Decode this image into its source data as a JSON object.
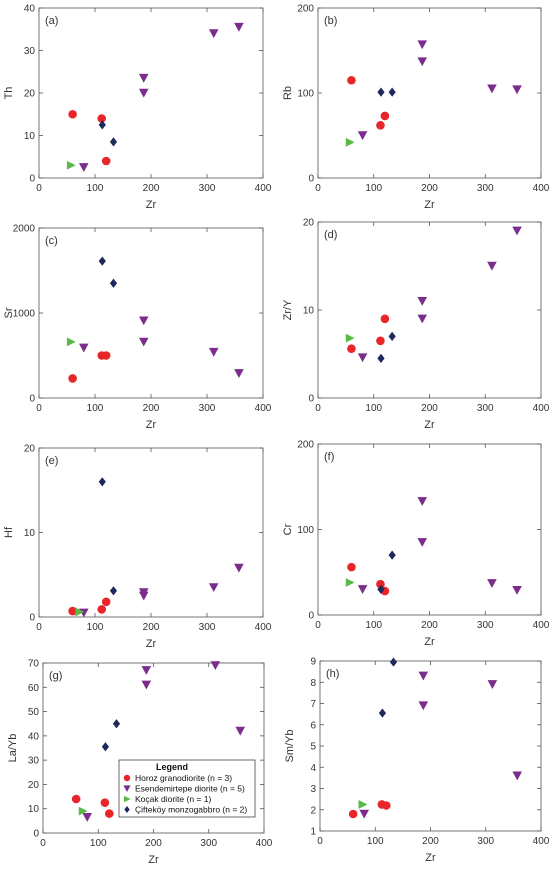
{
  "series_styles": [
    {
      "key": "horoz",
      "marker": "circle",
      "color": "#e8262a"
    },
    {
      "key": "esen",
      "marker": "triangle-down",
      "color": "#7a2d8c"
    },
    {
      "key": "kocak",
      "marker": "triangle-right",
      "color": "#5ab946"
    },
    {
      "key": "cift",
      "marker": "diamond",
      "color": "#1f2a5c"
    }
  ],
  "legend": {
    "title": "Legend",
    "entries": [
      {
        "key": "horoz",
        "label": "Horoz granodiorite (n = 3)"
      },
      {
        "key": "esen",
        "label": "Esendemirtepe diorite (n = 5)"
      },
      {
        "key": "kocak",
        "label": "Koçak diorite (n = 1)"
      },
      {
        "key": "cift",
        "label": "Çifteköy monzogabbro (n = 2)"
      }
    ]
  },
  "chart_data": [
    {
      "type": "scatter",
      "panel": "(a)",
      "xlabel": "Zr",
      "ylabel": "Th",
      "xlim": [
        0,
        400
      ],
      "ylim": [
        0,
        40
      ],
      "xticks": [
        0,
        100,
        200,
        300,
        400
      ],
      "yticks": [
        0,
        10,
        20,
        30,
        40
      ],
      "series": [
        {
          "key": "horoz",
          "x": [
            60,
            112,
            120
          ],
          "y": [
            15,
            14,
            4
          ]
        },
        {
          "key": "esen",
          "x": [
            80,
            187,
            187,
            312,
            357
          ],
          "y": [
            2.5,
            20,
            23.5,
            34,
            35.5
          ]
        },
        {
          "key": "kocak",
          "x": [
            57
          ],
          "y": [
            3
          ]
        },
        {
          "key": "cift",
          "x": [
            113,
            133
          ],
          "y": [
            12.5,
            8.5
          ]
        }
      ]
    },
    {
      "type": "scatter",
      "panel": "(b)",
      "xlabel": "Zr",
      "ylabel": "Rb",
      "xlim": [
        0,
        400
      ],
      "ylim": [
        0,
        200
      ],
      "xticks": [
        0,
        100,
        200,
        300,
        400
      ],
      "yticks": [
        0,
        100,
        200
      ],
      "series": [
        {
          "key": "horoz",
          "x": [
            60,
            112,
            120
          ],
          "y": [
            115,
            62,
            73
          ]
        },
        {
          "key": "esen",
          "x": [
            80,
            187,
            187,
            312,
            357
          ],
          "y": [
            50,
            137,
            157,
            105,
            104
          ]
        },
        {
          "key": "kocak",
          "x": [
            57
          ],
          "y": [
            42
          ]
        },
        {
          "key": "cift",
          "x": [
            113,
            133
          ],
          "y": [
            101,
            101
          ]
        }
      ]
    },
    {
      "type": "scatter",
      "panel": "(c)",
      "xlabel": "Zr",
      "ylabel": "Sr",
      "xlim": [
        0,
        400
      ],
      "ylim": [
        0,
        2000
      ],
      "xticks": [
        0,
        100,
        200,
        300,
        400
      ],
      "yticks": [
        0,
        1000,
        2000
      ],
      "series": [
        {
          "key": "horoz",
          "x": [
            60,
            112,
            120
          ],
          "y": [
            230,
            500,
            500
          ]
        },
        {
          "key": "esen",
          "x": [
            80,
            187,
            187,
            312,
            357
          ],
          "y": [
            590,
            660,
            910,
            540,
            290
          ]
        },
        {
          "key": "kocak",
          "x": [
            57
          ],
          "y": [
            660
          ]
        },
        {
          "key": "cift",
          "x": [
            113,
            133
          ],
          "y": [
            1610,
            1350
          ]
        }
      ]
    },
    {
      "type": "scatter",
      "panel": "(d)",
      "xlabel": "Zr",
      "ylabel": "Zr/Y",
      "xlim": [
        0,
        400
      ],
      "ylim": [
        0,
        20
      ],
      "xticks": [
        0,
        100,
        200,
        300,
        400
      ],
      "yticks": [
        0,
        10,
        20
      ],
      "series": [
        {
          "key": "horoz",
          "x": [
            60,
            112,
            120
          ],
          "y": [
            5.6,
            6.5,
            9
          ]
        },
        {
          "key": "esen",
          "x": [
            80,
            187,
            187,
            312,
            357
          ],
          "y": [
            4.6,
            9,
            11,
            15,
            19
          ]
        },
        {
          "key": "kocak",
          "x": [
            57
          ],
          "y": [
            6.8
          ]
        },
        {
          "key": "cift",
          "x": [
            113,
            133
          ],
          "y": [
            4.5,
            7
          ]
        }
      ]
    },
    {
      "type": "scatter",
      "panel": "(e)",
      "xlabel": "Zr",
      "ylabel": "Hf",
      "xlim": [
        0,
        400
      ],
      "ylim": [
        0,
        20
      ],
      "xticks": [
        0,
        100,
        200,
        300,
        400
      ],
      "yticks": [
        0,
        10,
        20
      ],
      "series": [
        {
          "key": "horoz",
          "x": [
            60,
            112,
            120
          ],
          "y": [
            0.7,
            0.9,
            1.8
          ]
        },
        {
          "key": "esen",
          "x": [
            80,
            187,
            187,
            312,
            357
          ],
          "y": [
            0.5,
            2.5,
            2.9,
            3.5,
            5.8
          ]
        },
        {
          "key": "kocak",
          "x": [
            72
          ],
          "y": [
            0.6
          ]
        },
        {
          "key": "cift",
          "x": [
            113,
            133
          ],
          "y": [
            16,
            3.1
          ]
        }
      ]
    },
    {
      "type": "scatter",
      "panel": "(f)",
      "xlabel": "Zr",
      "ylabel": "Cr",
      "xlim": [
        0,
        400
      ],
      "ylim": [
        0,
        200
      ],
      "xticks": [
        0,
        100,
        200,
        300,
        400
      ],
      "yticks": [
        0,
        100,
        200
      ],
      "series": [
        {
          "key": "horoz",
          "x": [
            60,
            112,
            120
          ],
          "y": [
            56,
            36,
            28
          ]
        },
        {
          "key": "esen",
          "x": [
            80,
            187,
            187,
            312,
            357
          ],
          "y": [
            30,
            85,
            133,
            37,
            29
          ]
        },
        {
          "key": "kocak",
          "x": [
            57
          ],
          "y": [
            38
          ]
        },
        {
          "key": "cift",
          "x": [
            113,
            133
          ],
          "y": [
            30,
            70
          ]
        }
      ]
    },
    {
      "type": "scatter",
      "panel": "(g)",
      "xlabel": "Zr",
      "ylabel": "La/Yb",
      "xlim": [
        0,
        400
      ],
      "ylim": [
        0,
        70
      ],
      "xticks": [
        0,
        100,
        200,
        300,
        400
      ],
      "yticks": [
        0,
        10,
        20,
        30,
        40,
        50,
        60,
        70
      ],
      "series": [
        {
          "key": "horoz",
          "x": [
            60,
            112,
            120
          ],
          "y": [
            14,
            12.5,
            8
          ]
        },
        {
          "key": "esen",
          "x": [
            80,
            187,
            187,
            312,
            357
          ],
          "y": [
            6.5,
            61,
            67,
            69,
            42
          ]
        },
        {
          "key": "kocak",
          "x": [
            72
          ],
          "y": [
            9
          ]
        },
        {
          "key": "cift",
          "x": [
            113,
            133
          ],
          "y": [
            35.5,
            45
          ]
        }
      ]
    },
    {
      "type": "scatter",
      "panel": "(h)",
      "xlabel": "Zr",
      "ylabel": "Sm/Yb",
      "xlim": [
        0,
        400
      ],
      "ylim": [
        1,
        9
      ],
      "xticks": [
        0,
        100,
        200,
        300,
        400
      ],
      "yticks": [
        1,
        2,
        3,
        4,
        5,
        6,
        7,
        8,
        9
      ],
      "series": [
        {
          "key": "horoz",
          "x": [
            60,
            112,
            120
          ],
          "y": [
            1.8,
            2.25,
            2.2
          ]
        },
        {
          "key": "esen",
          "x": [
            80,
            187,
            187,
            312,
            357
          ],
          "y": [
            1.8,
            6.9,
            8.3,
            7.9,
            3.6
          ]
        },
        {
          "key": "kocak",
          "x": [
            77
          ],
          "y": [
            2.25
          ]
        },
        {
          "key": "cift",
          "x": [
            113,
            133
          ],
          "y": [
            6.55,
            8.95
          ]
        }
      ]
    }
  ]
}
